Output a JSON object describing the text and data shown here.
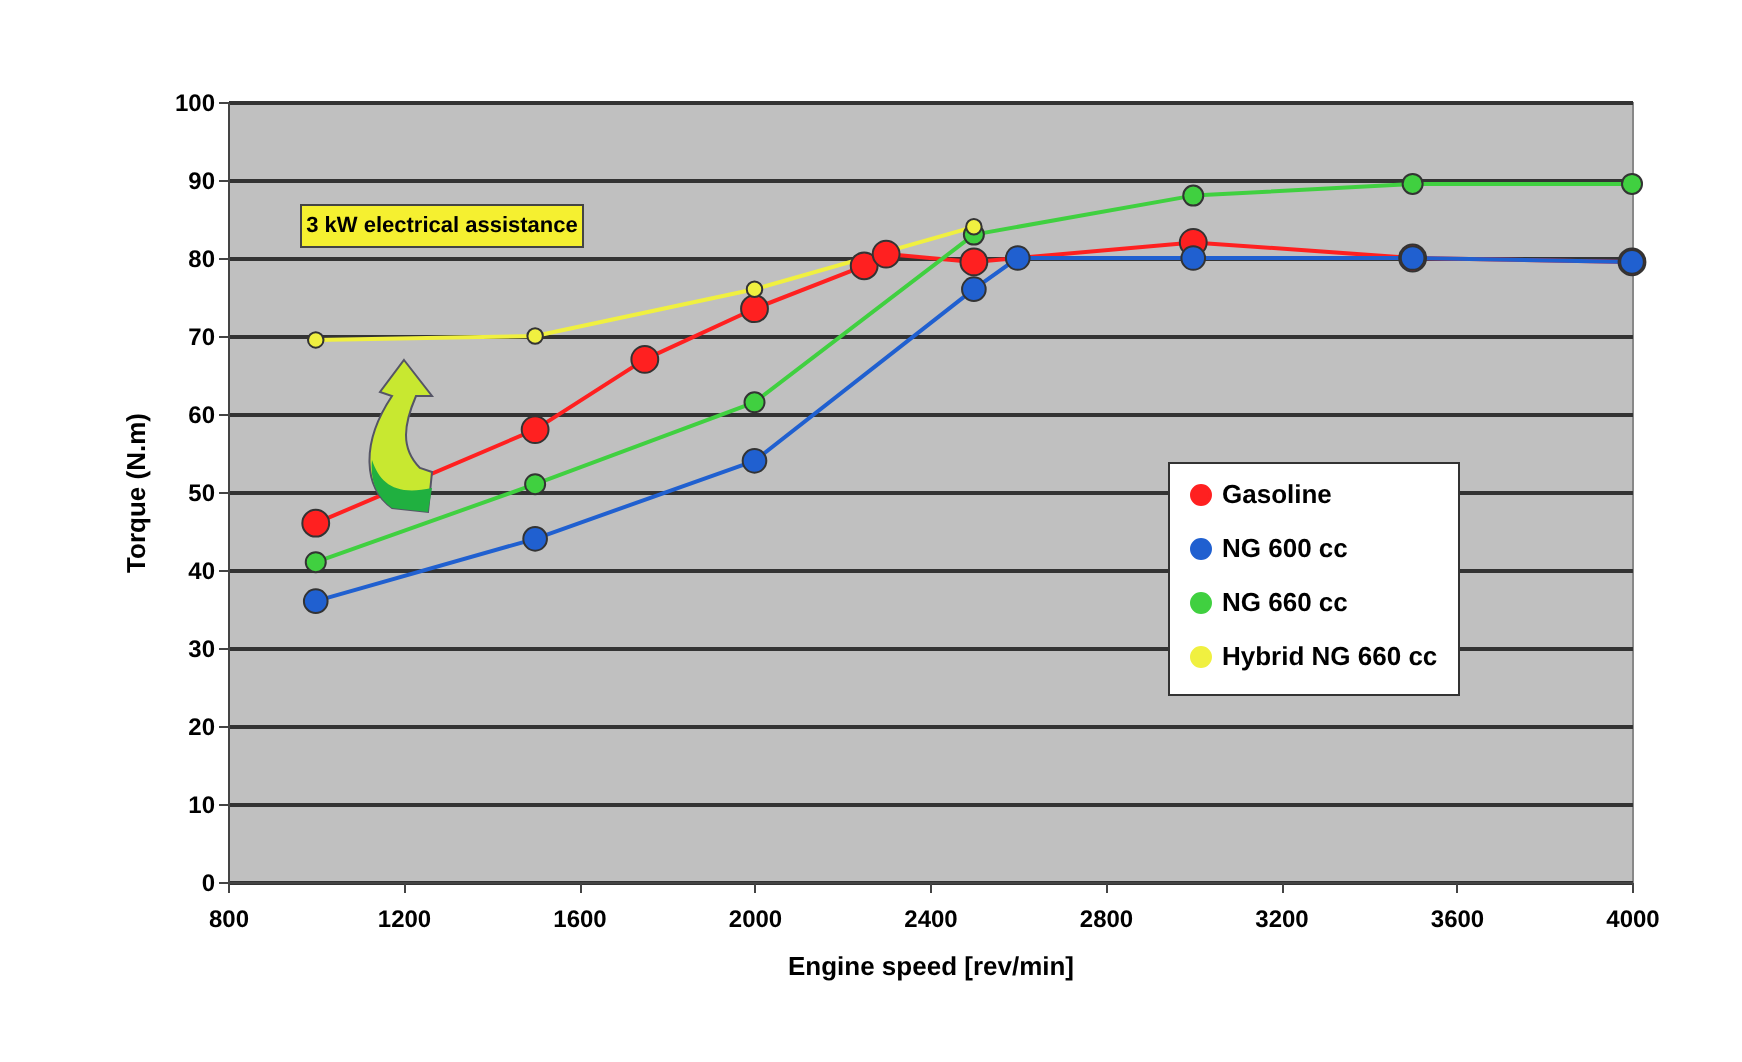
{
  "chart_data": {
    "type": "line",
    "xlabel": "Engine speed [rev/min]",
    "ylabel": "Torque (N.m)",
    "xlim": [
      800,
      4000
    ],
    "ylim": [
      0,
      100
    ],
    "xticks": [
      800,
      1200,
      1600,
      2000,
      2400,
      2800,
      3200,
      3600,
      4000
    ],
    "yticks": [
      0,
      10,
      20,
      30,
      40,
      50,
      60,
      70,
      80,
      90,
      100
    ],
    "grid": "y",
    "legend": "right",
    "marker": "circle",
    "line_style": "solid",
    "annotations": [
      "3 kW electrical assistance"
    ],
    "series": [
      {
        "name": "Gasoline",
        "color": "#ff2020",
        "x": [
          1000,
          1500,
          1750,
          2000,
          2250,
          2300,
          2500,
          3000,
          3500,
          4000
        ],
        "values": [
          46,
          58,
          67,
          73.5,
          79,
          80.5,
          79.5,
          82,
          80,
          79.5
        ]
      },
      {
        "name": "NG 600 cc",
        "color": "#2060d0",
        "x": [
          1000,
          1500,
          2000,
          2500,
          2600,
          3000,
          3500,
          4000
        ],
        "values": [
          36,
          44,
          54,
          76,
          80,
          80,
          80,
          79.5
        ]
      },
      {
        "name": "NG 660 cc",
        "color": "#40d040",
        "x": [
          1000,
          1500,
          2000,
          2500,
          3000,
          3500,
          4000
        ],
        "values": [
          41,
          51,
          61.5,
          83,
          88,
          89.5,
          89.5
        ]
      },
      {
        "name": "Hybrid NG 660 cc",
        "color": "#f0f040",
        "x": [
          1000,
          1500,
          2000,
          2500
        ],
        "values": [
          69.5,
          70,
          76,
          84
        ]
      }
    ]
  }
}
